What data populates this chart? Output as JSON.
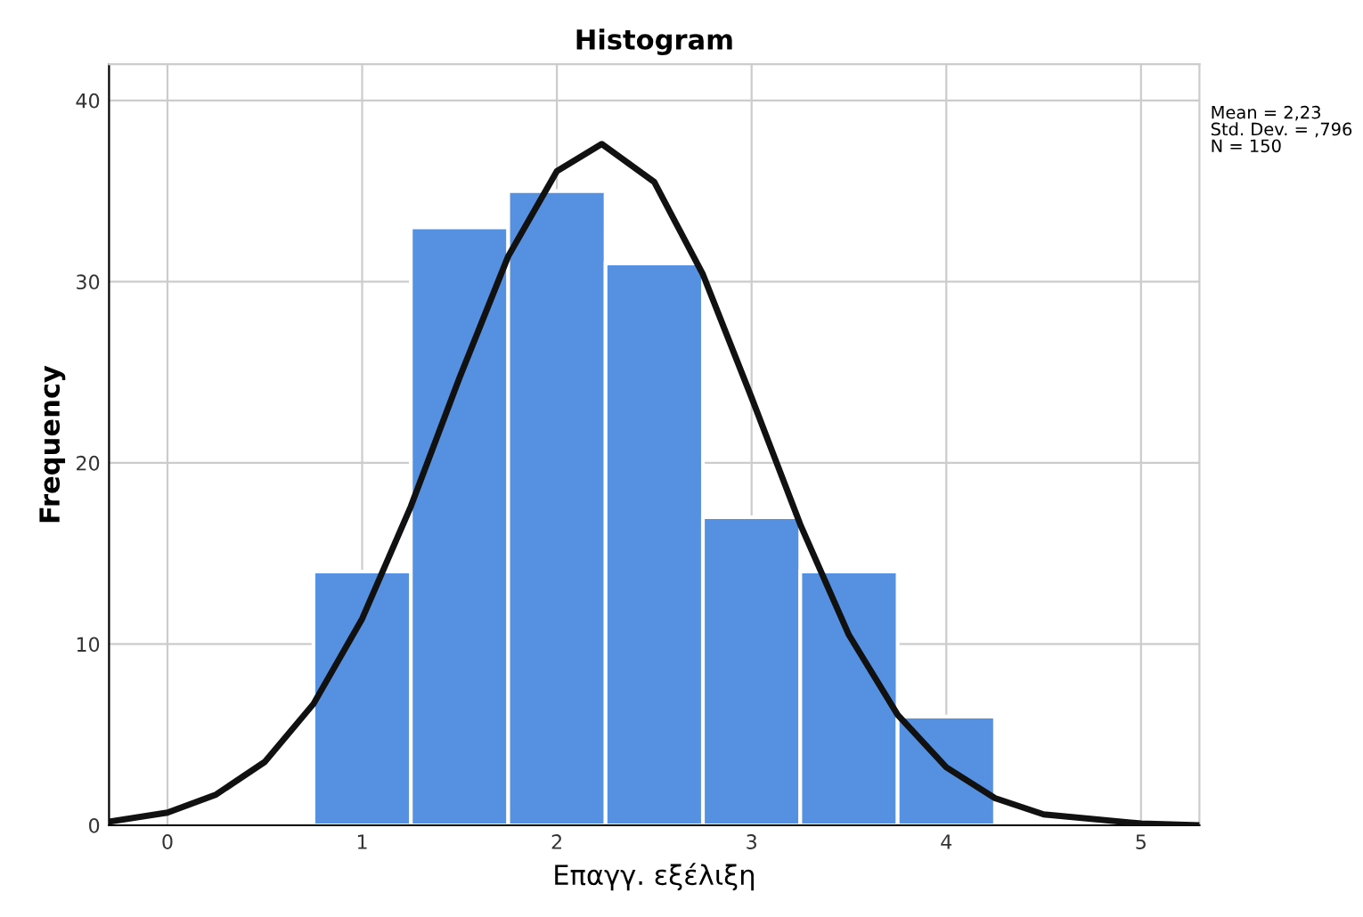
{
  "chart_data": {
    "type": "histogram",
    "title": "Histogram",
    "xlabel": "Επαγγ. εξέλιξη",
    "ylabel": "Frequency",
    "bins": [
      0.75,
      1.25,
      1.75,
      2.25,
      2.75,
      3.25,
      3.75,
      4.25
    ],
    "values": [
      14,
      33,
      35,
      31,
      17,
      14,
      6
    ],
    "color": "#5591e0",
    "series": [
      {
        "type": "line",
        "color": "#111111",
        "x": [
          -0.3,
          0,
          0.25,
          0.5,
          0.75,
          1.0,
          1.25,
          1.5,
          1.75,
          2.0,
          2.23,
          2.5,
          2.75,
          3.0,
          3.25,
          3.5,
          3.75,
          4.0,
          4.25,
          4.5,
          5.0,
          5.3
        ],
        "values": [
          0.2,
          0.7,
          1.7,
          3.5,
          6.7,
          11.4,
          17.6,
          24.7,
          31.4,
          36.1,
          37.6,
          35.5,
          30.4,
          23.6,
          16.6,
          10.5,
          6.1,
          3.2,
          1.5,
          0.6,
          0.1,
          0.0
        ]
      }
    ],
    "xlim": [
      -0.3,
      5.3
    ],
    "ylim": [
      0,
      42
    ],
    "xticks": [
      0,
      1,
      2,
      3,
      4,
      5
    ],
    "yticks": [
      0,
      10,
      20,
      30,
      40
    ],
    "grid": true,
    "marker": "none",
    "line_style": "solid",
    "annotations": [
      "Mean = 2,23",
      "Std. Dev. = ,796",
      "N = 150"
    ]
  }
}
